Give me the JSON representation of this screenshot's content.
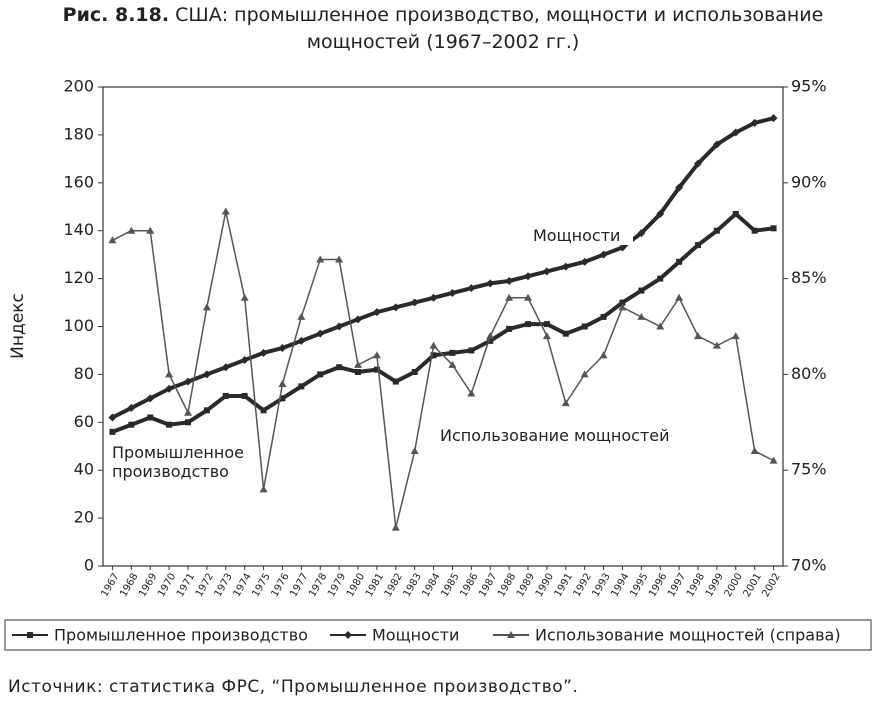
{
  "chart_data": {
    "type": "line",
    "figure_label": "Рис. 8.18.",
    "title": "США: промышленное производство, мощности и использование мощностей (1967–2002 гг.)",
    "y_label": "Индекс",
    "source": "Источник: статистика ФРС, “Промышленное производство”.",
    "categories": [
      "1967",
      "1968",
      "1969",
      "1970",
      "1971",
      "1972",
      "1973",
      "1974",
      "1975",
      "1976",
      "1977",
      "1978",
      "1979",
      "1980",
      "1981",
      "1982",
      "1983",
      "1984",
      "1985",
      "1986",
      "1987",
      "1988",
      "1989",
      "1990",
      "1991",
      "1992",
      "1993",
      "1994",
      "1995",
      "1996",
      "1997",
      "1998",
      "1999",
      "2000",
      "2001",
      "2002"
    ],
    "series": [
      {
        "name": "Промышленное производство",
        "color": "#2a2a2a",
        "marker": "square",
        "values": [
          56,
          59,
          62,
          59,
          60,
          65,
          71,
          71,
          65,
          70,
          75,
          80,
          83,
          81,
          82,
          77,
          81,
          88,
          89,
          90,
          94,
          99,
          101,
          101,
          97,
          100,
          104,
          110,
          115,
          120,
          127,
          134,
          140,
          147,
          140,
          141
        ]
      },
      {
        "name": "Мощности",
        "color": "#2a2a2a",
        "marker": "diamond",
        "values": [
          62,
          66,
          70,
          74,
          77,
          80,
          83,
          86,
          89,
          91,
          94,
          97,
          100,
          103,
          106,
          108,
          110,
          112,
          114,
          116,
          118,
          119,
          121,
          123,
          125,
          127,
          130,
          133,
          139,
          147,
          158,
          168,
          176,
          181,
          185,
          187
        ]
      },
      {
        "name": "Использование мощностей (справа)",
        "color": "#555555",
        "marker": "triangle",
        "axis": "y2",
        "values": [
          87,
          87.5,
          87.5,
          80,
          78,
          83.5,
          88.5,
          84,
          74,
          79.5,
          83,
          86,
          86,
          80.5,
          81,
          72,
          76,
          81.5,
          80.5,
          79,
          82,
          84,
          84,
          82,
          78.5,
          80,
          81,
          83.5,
          83,
          82.5,
          84,
          82,
          81.5,
          82,
          76,
          75.5
        ]
      }
    ],
    "annotations": [
      "Мощности",
      "Промышленное производство",
      "Использование мощностей"
    ],
    "ylim": [
      0,
      200
    ],
    "yticks": [
      0,
      20,
      40,
      60,
      80,
      100,
      120,
      140,
      160,
      180,
      200
    ],
    "y2lim": [
      70,
      95
    ],
    "y2ticks": [
      {
        "value": 70,
        "label": "70%"
      },
      {
        "value": 75,
        "label": "75%"
      },
      {
        "value": 80,
        "label": "80%"
      },
      {
        "value": 85,
        "label": "85%"
      },
      {
        "value": 90,
        "label": "90%"
      },
      {
        "value": 95,
        "label": "95%"
      }
    ]
  }
}
